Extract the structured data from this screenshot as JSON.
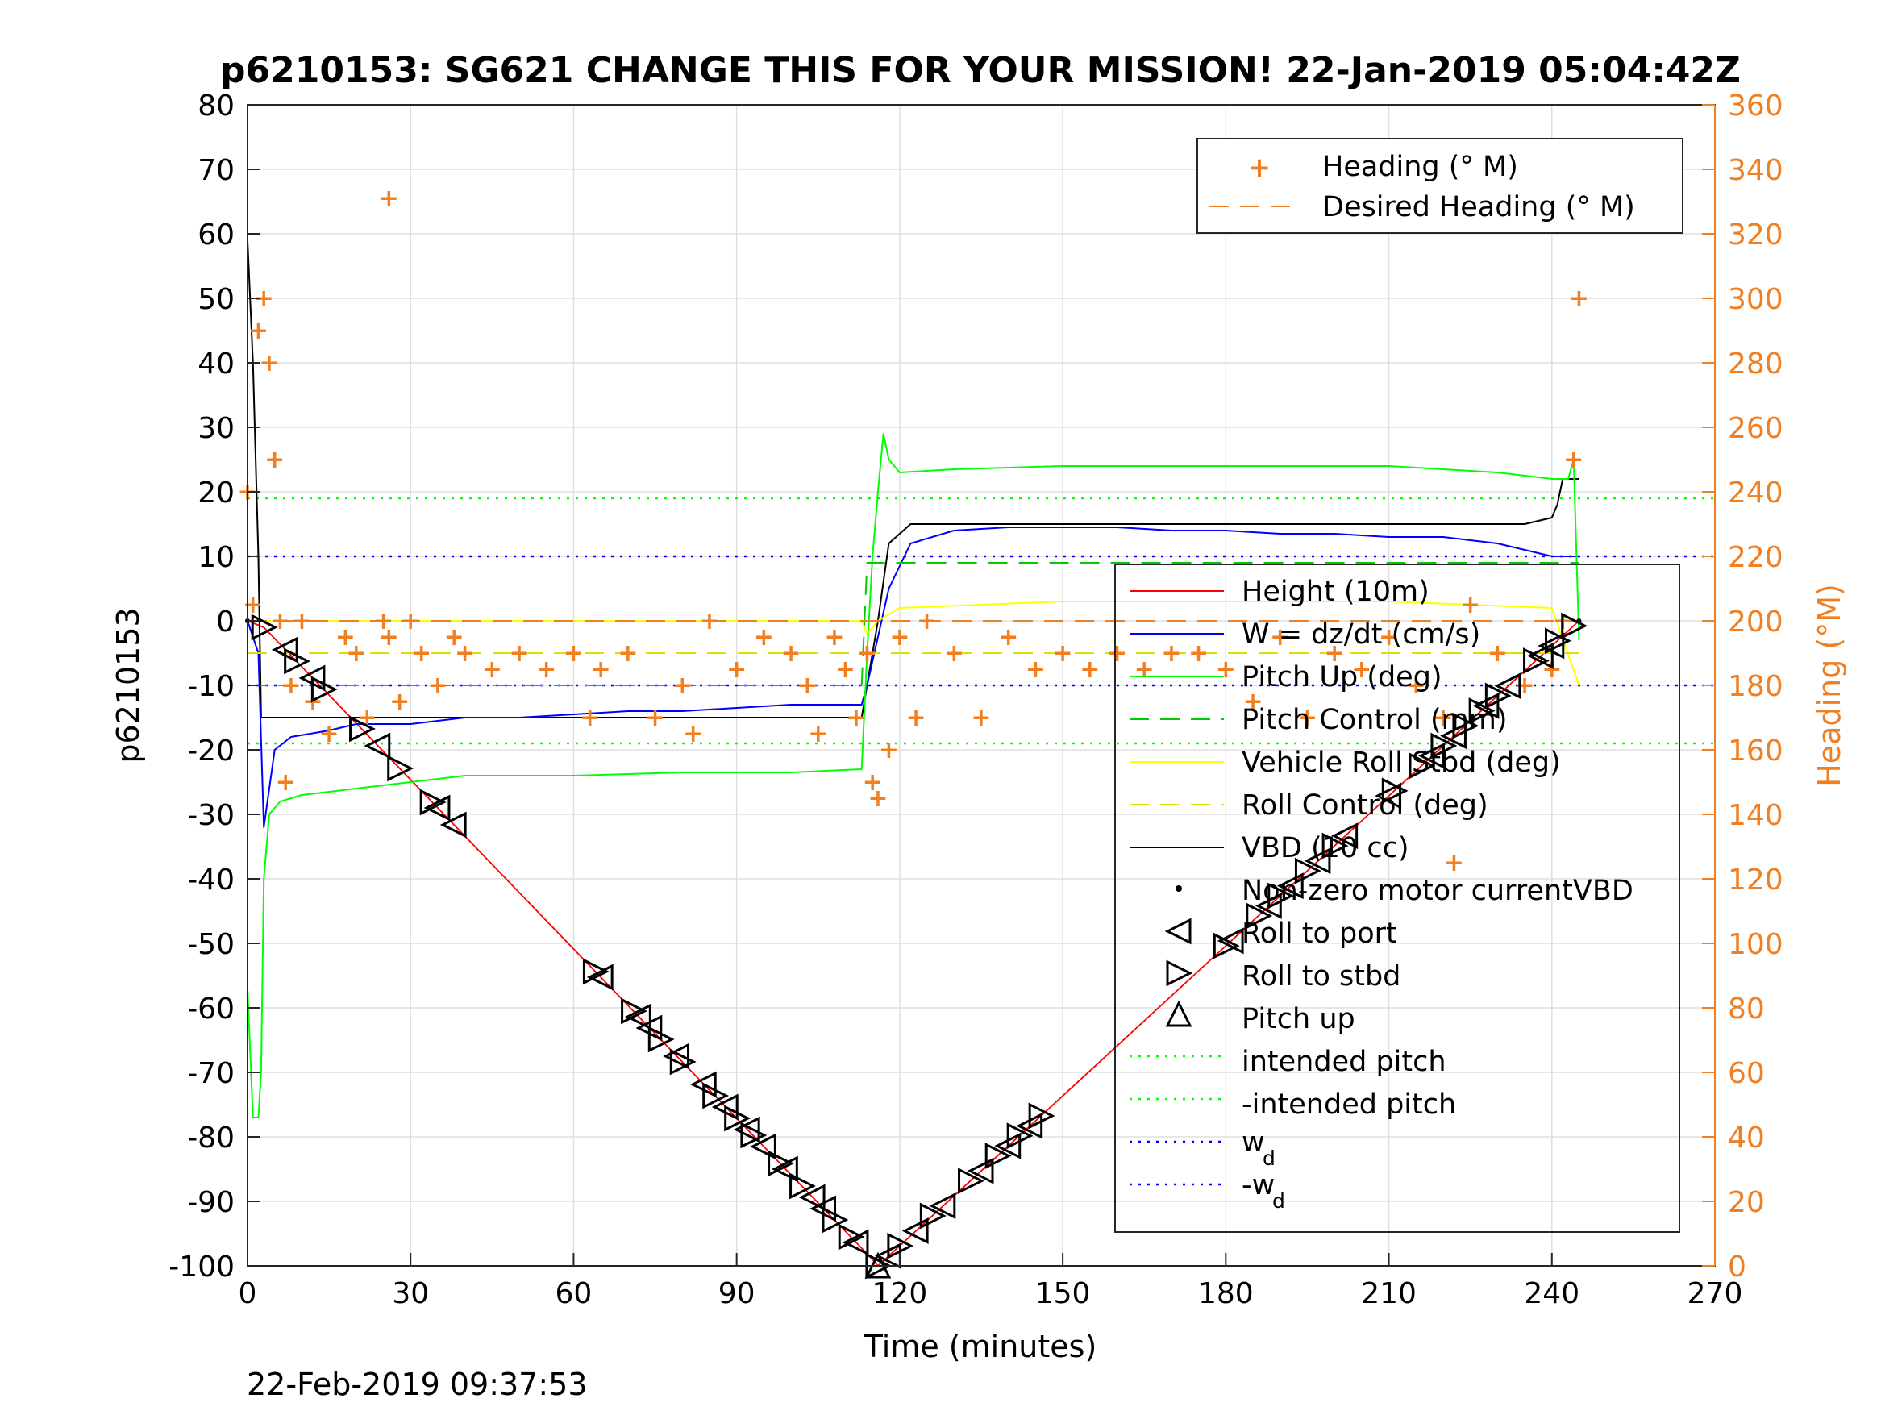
{
  "chart_data": {
    "type": "line",
    "title": "p6210153: SG621 CHANGE THIS FOR YOUR MISSION! 22-Jan-2019 05:04:42Z",
    "xlabel": "Time (minutes)",
    "ylabel": "p6210153",
    "ylabel_right": "Heading (°M)",
    "footer": "22-Feb-2019 09:37:53",
    "xlim": [
      0,
      270
    ],
    "ylim": [
      -100,
      80
    ],
    "ylim_right": [
      0,
      360
    ],
    "x_ticks": [
      0,
      30,
      60,
      90,
      120,
      150,
      180,
      210,
      240,
      270
    ],
    "y_ticks": [
      80,
      70,
      60,
      50,
      40,
      30,
      20,
      10,
      0,
      -10,
      -20,
      -30,
      -40,
      -50,
      -60,
      -70,
      -80,
      -90,
      -100
    ],
    "y_ticks_right": [
      360,
      340,
      320,
      300,
      280,
      260,
      240,
      220,
      200,
      180,
      160,
      140,
      120,
      100,
      80,
      60,
      40,
      20,
      0
    ],
    "grid": true,
    "colors": {
      "height": "#ff0000",
      "w": "#0000ff",
      "pitch_up": "#00ff00",
      "pitch_control": "#00cc00",
      "roll": "#ffff00",
      "roll_control": "#e0e000",
      "vbd": "#000000",
      "heading": "#f07f22",
      "intended_pitch": "#00ff00",
      "wd": "#0000ff"
    },
    "legend_heading": {
      "placement": "top-right",
      "entries": [
        "Heading (° M)",
        "Desired Heading (° M)"
      ]
    },
    "legend_main": {
      "placement": "right",
      "entries": [
        "Height (10m)",
        "W = dz/dt (cm/s)",
        "Pitch Up (deg)",
        "Pitch Control (mm)",
        "Vehicle Roll Stbd (deg)",
        "Roll Control (deg)",
        "VBD (10 cc)",
        "Non-zero motor currentVBD",
        "Roll to port",
        "Roll to stbd",
        "Pitch up",
        "intended pitch",
        "-intended pitch",
        "w",
        "-w"
      ],
      "subscripts": [
        "d",
        "d"
      ]
    },
    "reference_lines": {
      "intended_pitch": 19,
      "neg_intended_pitch": -19,
      "w_d": 10,
      "neg_w_d": -10
    },
    "series": [
      {
        "name": "Height (10m)",
        "x": [
          0,
          3,
          115,
          116,
          245
        ],
        "y": [
          0,
          -1,
          -99,
          -100,
          0
        ]
      },
      {
        "name": "VBD (10 cc)",
        "x": [
          0,
          1,
          2,
          2.5,
          113,
          114,
          116,
          118,
          122,
          128,
          230,
          235,
          240,
          241,
          242,
          244,
          245
        ],
        "y": [
          59,
          40,
          10,
          -15,
          -15,
          -10,
          0,
          12,
          15,
          15,
          15,
          15,
          16,
          18,
          22,
          22,
          22
        ]
      },
      {
        "name": "W = dz/dt (cm/s)",
        "x": [
          0,
          2,
          3,
          5,
          8,
          15,
          20,
          30,
          40,
          50,
          60,
          70,
          80,
          90,
          100,
          110,
          113,
          114,
          118,
          122,
          130,
          140,
          150,
          160,
          170,
          180,
          190,
          200,
          210,
          220,
          230,
          235,
          240,
          243,
          245
        ],
        "y": [
          0,
          -5,
          -32,
          -20,
          -18,
          -17,
          -16,
          -16,
          -15,
          -15,
          -14.5,
          -14,
          -14,
          -13.5,
          -13,
          -13,
          -13,
          -10,
          5,
          12,
          14,
          14.5,
          14.5,
          14.5,
          14,
          14,
          13.5,
          13.5,
          13,
          13,
          12,
          11,
          10,
          10,
          10
        ]
      },
      {
        "name": "Pitch Up (deg)",
        "x": [
          0,
          1,
          2,
          2.5,
          3,
          4,
          6,
          10,
          20,
          30,
          40,
          60,
          80,
          100,
          113,
          114,
          115,
          116,
          117,
          118,
          120,
          130,
          150,
          170,
          190,
          210,
          230,
          240,
          243,
          244,
          245
        ],
        "y": [
          -57,
          -77,
          -77,
          -70,
          -40,
          -30,
          -28,
          -27,
          -26,
          -25,
          -24,
          -24,
          -23.5,
          -23.5,
          -23,
          -5,
          10,
          20,
          29,
          25,
          23,
          23.5,
          24,
          24,
          24,
          24,
          23,
          22,
          22,
          25,
          -3
        ]
      },
      {
        "name": "Pitch Control (mm)",
        "x": [
          0,
          10,
          113,
          114,
          120,
          245
        ],
        "y": [
          -10,
          -10,
          -10,
          9,
          9,
          9
        ]
      },
      {
        "name": "Vehicle Roll Stbd (deg)",
        "x": [
          0,
          5,
          30,
          60,
          90,
          110,
          113,
          114,
          116,
          120,
          150,
          180,
          210,
          240,
          245
        ],
        "y": [
          0,
          0,
          0,
          0,
          0,
          0,
          0,
          -2,
          0,
          2,
          3,
          3,
          3,
          2,
          -10
        ]
      },
      {
        "name": "Roll Control (deg)",
        "x": [
          0,
          245
        ],
        "y": [
          -5,
          -5
        ]
      },
      {
        "name": "Heading (° M)",
        "x": [
          0,
          1,
          2,
          3,
          4,
          5,
          6,
          7,
          8,
          10,
          12,
          15,
          18,
          20,
          22,
          25,
          26,
          28,
          30,
          32,
          35,
          38,
          40,
          45,
          50,
          55,
          60,
          63,
          65,
          70,
          75,
          80,
          82,
          85,
          90,
          95,
          100,
          103,
          105,
          108,
          110,
          112,
          114,
          115,
          116,
          118,
          120,
          123,
          125,
          130,
          135,
          140,
          145,
          150,
          155,
          160,
          165,
          170,
          175,
          180,
          185,
          190,
          195,
          200,
          205,
          210,
          215,
          220,
          222,
          225,
          230,
          235,
          240,
          242,
          244,
          245
        ],
        "y": [
          240,
          205,
          290,
          300,
          280,
          250,
          200,
          150,
          180,
          200,
          175,
          165,
          195,
          190,
          170,
          200,
          195,
          175,
          200,
          190,
          180,
          195,
          190,
          185,
          190,
          185,
          190,
          170,
          185,
          190,
          170,
          180,
          165,
          200,
          185,
          195,
          190,
          180,
          165,
          195,
          185,
          170,
          190,
          150,
          145,
          160,
          195,
          170,
          200,
          190,
          170,
          195,
          185,
          190,
          185,
          190,
          185,
          190,
          190,
          185,
          175,
          195,
          170,
          190,
          185,
          195,
          180,
          170,
          125,
          205,
          190,
          180,
          185,
          200,
          250,
          300
        ]
      },
      {
        "name": "Desired Heading (° M)",
        "x": [
          0,
          245
        ],
        "y": [
          200,
          200
        ]
      }
    ],
    "markers": {
      "roll_to_port_times": [
        7,
        12,
        24,
        35,
        38,
        65,
        72,
        74,
        79,
        84,
        88,
        92,
        95,
        99,
        104,
        106,
        112,
        118,
        123,
        128,
        135,
        140,
        144,
        181,
        188,
        192,
        197,
        202,
        210,
        218,
        222,
        228,
        232,
        238,
        240
      ],
      "roll_to_stbd_times": [
        3,
        9,
        14,
        21,
        28,
        34,
        64,
        71,
        76,
        80,
        86,
        90,
        93,
        98,
        102,
        108,
        111,
        116,
        120,
        126,
        133,
        138,
        142,
        146,
        180,
        186,
        190,
        195,
        200,
        211,
        216,
        220,
        224,
        227,
        230,
        237,
        241,
        244
      ],
      "pitch_up_time": 116,
      "sample_times": [
        0,
        245
      ]
    },
    "heading_outlier": {
      "x": 26,
      "y": 331
    }
  }
}
